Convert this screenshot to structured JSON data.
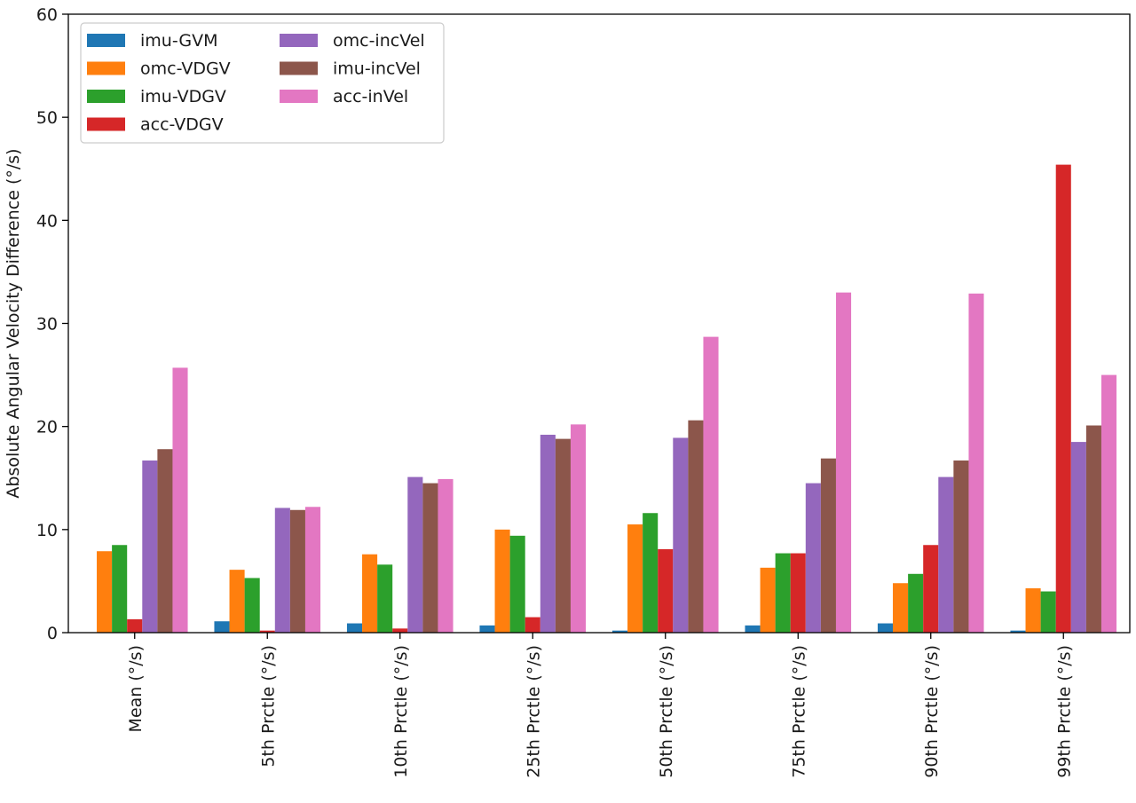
{
  "chart_data": {
    "type": "bar",
    "title": "",
    "xlabel": "",
    "ylabel": "Absolute Angular Velocity Difference (°/s)",
    "ylim": [
      0,
      60
    ],
    "yticks": [
      0,
      10,
      20,
      30,
      40,
      50,
      60
    ],
    "grid": false,
    "legend_position": "top-left",
    "legend_columns": 2,
    "categories": [
      "Mean (°/s)",
      "5th Prctle (°/s)",
      "10th Prctle (°/s)",
      "25th Prctle (°/s)",
      "50th Prctle (°/s)",
      "75th Prctle (°/s)",
      "90th Prctle (°/s)",
      "99th Prctle (°/s)"
    ],
    "series": [
      {
        "name": "imu-GVM",
        "color": "#1f77b4",
        "values": [
          0.0,
          1.1,
          0.9,
          0.7,
          0.2,
          0.7,
          0.9,
          0.2
        ]
      },
      {
        "name": "omc-VDGV",
        "color": "#ff7f0e",
        "values": [
          7.9,
          6.1,
          7.6,
          10.0,
          10.5,
          6.3,
          4.8,
          4.3
        ]
      },
      {
        "name": "imu-VDGV",
        "color": "#2ca02c",
        "values": [
          8.5,
          5.3,
          6.6,
          9.4,
          11.6,
          7.7,
          5.7,
          4.0
        ]
      },
      {
        "name": "acc-VDGV",
        "color": "#d62728",
        "values": [
          1.3,
          0.2,
          0.4,
          1.5,
          8.1,
          7.7,
          8.5,
          45.4
        ]
      },
      {
        "name": "omc-incVel",
        "color": "#9467bd",
        "values": [
          16.7,
          12.1,
          15.1,
          19.2,
          18.9,
          14.5,
          15.1,
          18.5
        ]
      },
      {
        "name": "imu-incVel",
        "color": "#8c564b",
        "values": [
          17.8,
          11.9,
          14.5,
          18.8,
          20.6,
          16.9,
          16.7,
          20.1
        ]
      },
      {
        "name": "acc-inVel",
        "color": "#e377c2",
        "values": [
          25.7,
          12.2,
          14.9,
          20.2,
          28.7,
          33.0,
          32.9,
          25.0
        ]
      }
    ]
  }
}
